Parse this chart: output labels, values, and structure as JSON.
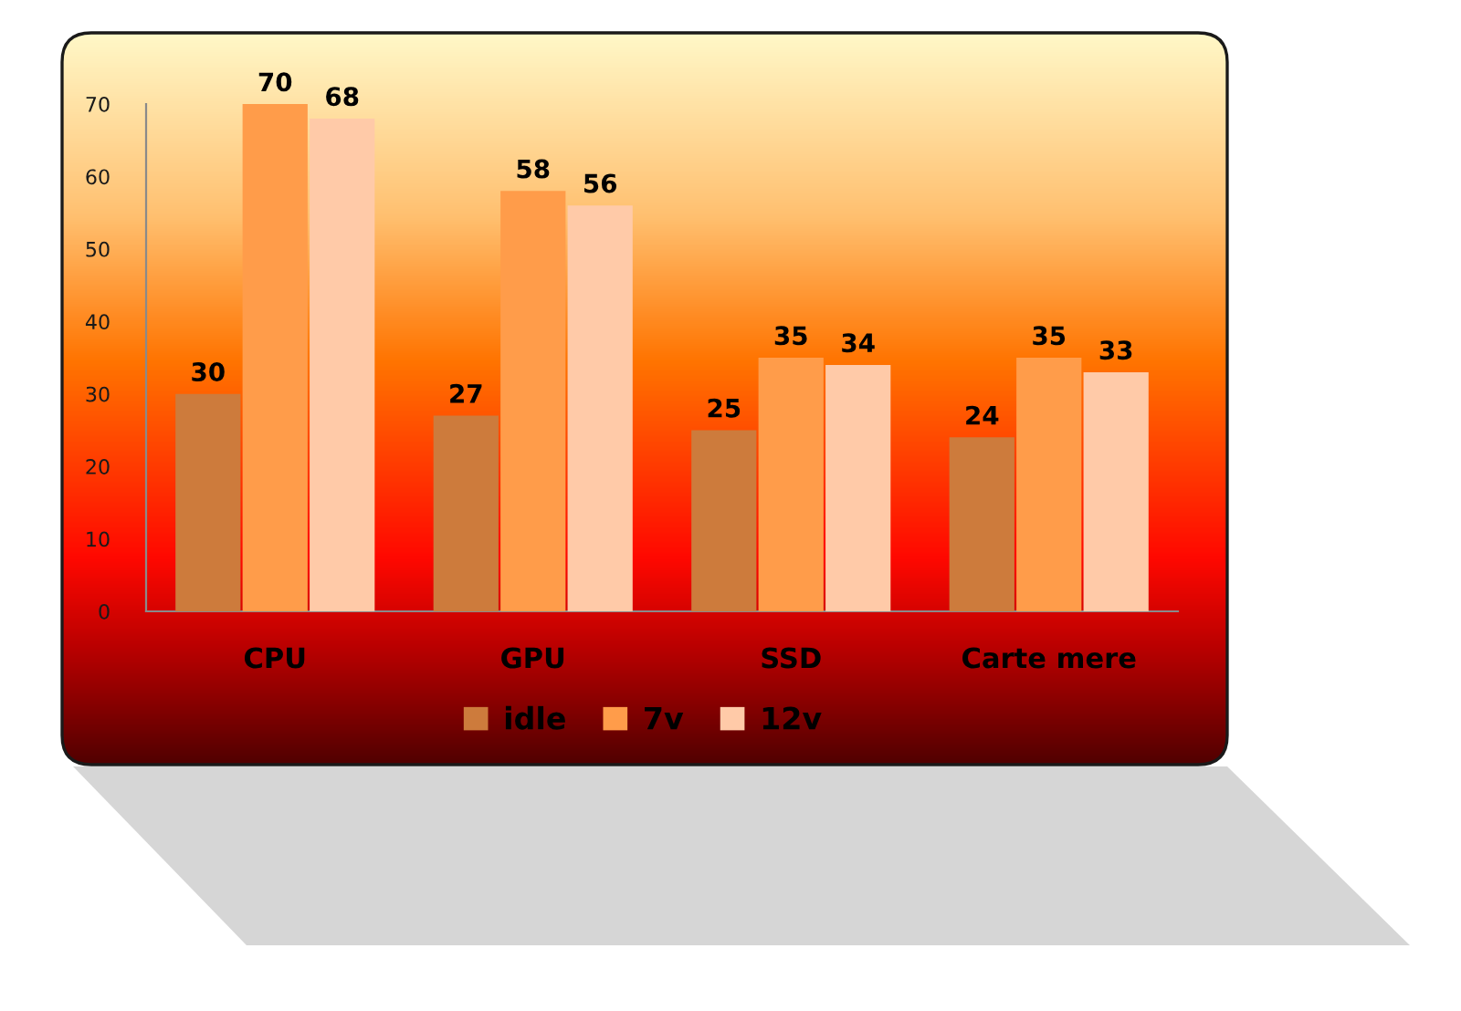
{
  "chart_data": {
    "type": "bar",
    "categories": [
      "CPU",
      "GPU",
      "SSD",
      "Carte mere"
    ],
    "series": [
      {
        "name": "idle",
        "color": "#cd7b3c",
        "values": [
          30,
          27,
          25,
          24
        ]
      },
      {
        "name": "7v",
        "color": "#ff9c4a",
        "values": [
          70,
          58,
          35,
          35
        ]
      },
      {
        "name": "12v",
        "color": "#ffcaa8",
        "values": [
          68,
          56,
          34,
          33
        ]
      }
    ],
    "ylim": [
      0,
      70
    ],
    "yticks": [
      0,
      10,
      20,
      30,
      40,
      50,
      60,
      70
    ],
    "data_labels": true,
    "legend": "bottom",
    "grid": false
  }
}
